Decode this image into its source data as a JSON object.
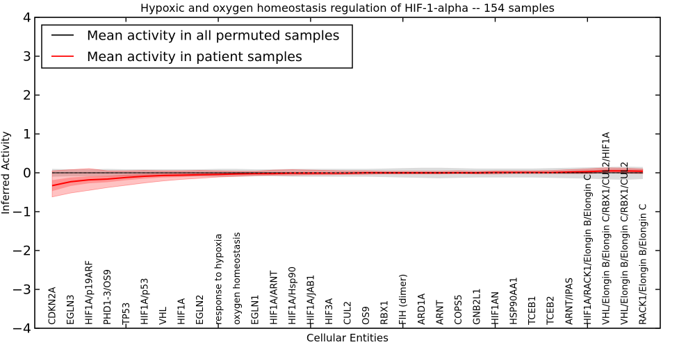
{
  "window": {
    "title": "Hypoxic and oxygen homeostasis regulation of HIF-1-alpha -- 154 samples"
  },
  "chart_data": {
    "type": "line",
    "title": "Hypoxic and oxygen homeostasis regulation of HIF-1-alpha -- 154 samples",
    "xlabel": "Cellular Entities",
    "ylabel": "Inferred Activity",
    "ylim": [
      -4,
      4
    ],
    "y_ticks": [
      -4,
      -3,
      -2,
      -1,
      0,
      1,
      2,
      3,
      4
    ],
    "x_major_tick_indices": [
      4,
      9,
      14,
      19,
      24,
      29
    ],
    "grid": "off",
    "legend_position": "upper left",
    "sample_count_in_title": 154,
    "categories": [
      "CDKN2A",
      "EGLN3",
      "HIF1A/p19ARF",
      "PHD1-3/OS9",
      "TP53",
      "HIF1A/p53",
      "VHL",
      "HIF1A",
      "EGLN2",
      "response to hypoxia",
      "oxygen homeostasis",
      "EGLN1",
      "HIF1A/ARNT",
      "HIF1A/Hsp90",
      "HIF1A/JAB1",
      "HIF3A",
      "CUL2",
      "OS9",
      "RBX1",
      "FIH (dimer)",
      "ARD1A",
      "ARNT",
      "COPS5",
      "GNB2L1",
      "HIF1AN",
      "HSP90AA1",
      "TCEB1",
      "TCEB2",
      "ARNT/IPAS",
      "HIF1A/RACK1/Elongin B/Elongin C",
      "VHL/Elongin B/Elongin C/RBX1/CUL2/HIF1A",
      "VHL/Elongin B/Elongin C/RBX1/CUL2",
      "RACK1/Elongin B/Elongin C"
    ],
    "series": [
      {
        "name": "Mean activity in all permuted samples",
        "color": "#000000",
        "line_style": "solid-with-dashed-overlay",
        "values": [
          0,
          0,
          0,
          0,
          0,
          0,
          0,
          0,
          0,
          0,
          0,
          0,
          0,
          0,
          0,
          0,
          0,
          0,
          0,
          0,
          0,
          0,
          0,
          0,
          0,
          0,
          0,
          0,
          0,
          0,
          0,
          0,
          0
        ],
        "band_upper": [
          0.1,
          0.09,
          0.09,
          0.1,
          0.09,
          0.09,
          0.09,
          0.09,
          0.09,
          0.1,
          0.1,
          0.09,
          0.09,
          0.1,
          0.1,
          0.1,
          0.1,
          0.1,
          0.11,
          0.12,
          0.13,
          0.13,
          0.12,
          0.11,
          0.11,
          0.11,
          0.11,
          0.12,
          0.13,
          0.14,
          0.15,
          0.16,
          0.15
        ],
        "band_lower": [
          -0.1,
          -0.09,
          -0.09,
          -0.1,
          -0.09,
          -0.09,
          -0.09,
          -0.09,
          -0.09,
          -0.1,
          -0.1,
          -0.09,
          -0.09,
          -0.1,
          -0.1,
          -0.1,
          -0.1,
          -0.1,
          -0.11,
          -0.12,
          -0.13,
          -0.14,
          -0.13,
          -0.12,
          -0.12,
          -0.12,
          -0.12,
          -0.13,
          -0.14,
          -0.15,
          -0.17,
          -0.18,
          -0.16
        ],
        "band_color": "rgba(0,0,0,0.14)"
      },
      {
        "name": "Mean activity in patient samples",
        "color": "#ff0000",
        "line_style": "solid",
        "values": [
          -0.33,
          -0.23,
          -0.18,
          -0.16,
          -0.12,
          -0.09,
          -0.07,
          -0.06,
          -0.05,
          -0.04,
          -0.03,
          -0.02,
          -0.02,
          -0.01,
          -0.01,
          -0.01,
          -0.01,
          0.0,
          0.0,
          0.0,
          0.0,
          0.0,
          0.0,
          0.0,
          0.01,
          0.01,
          0.01,
          0.01,
          0.02,
          0.03,
          0.05,
          0.05,
          0.04
        ],
        "band_upper": [
          0.05,
          0.08,
          0.11,
          0.05,
          0.05,
          0.06,
          0.05,
          0.05,
          0.06,
          0.05,
          0.04,
          0.04,
          0.07,
          0.08,
          0.07,
          0.06,
          0.05,
          0.05,
          0.04,
          0.04,
          0.04,
          0.04,
          0.05,
          0.04,
          0.05,
          0.05,
          0.05,
          0.06,
          0.08,
          0.1,
          0.13,
          0.12,
          0.1
        ],
        "band_lower": [
          -0.62,
          -0.52,
          -0.45,
          -0.38,
          -0.32,
          -0.26,
          -0.21,
          -0.17,
          -0.14,
          -0.11,
          -0.09,
          -0.07,
          -0.06,
          -0.06,
          -0.05,
          -0.05,
          -0.04,
          -0.04,
          -0.03,
          -0.03,
          -0.03,
          -0.03,
          -0.02,
          -0.03,
          -0.03,
          -0.02,
          -0.02,
          -0.02,
          -0.02,
          -0.02,
          0.0,
          -0.01,
          -0.02
        ],
        "inner_band_upper": [
          -0.19,
          -0.12,
          -0.09,
          -0.08,
          -0.05,
          -0.03,
          -0.02,
          -0.01,
          -0.01,
          0.0,
          0.0,
          0.01,
          0.01,
          0.02,
          0.02,
          0.01,
          0.01,
          0.02,
          0.02,
          0.02,
          0.02,
          0.02,
          0.02,
          0.02,
          0.03,
          0.03,
          0.03,
          0.03,
          0.05,
          0.07,
          0.09,
          0.09,
          0.08
        ],
        "inner_band_lower": [
          -0.47,
          -0.34,
          -0.27,
          -0.24,
          -0.19,
          -0.15,
          -0.12,
          -0.11,
          -0.09,
          -0.08,
          -0.06,
          -0.05,
          -0.05,
          -0.04,
          -0.04,
          -0.03,
          -0.03,
          -0.02,
          -0.02,
          -0.02,
          -0.02,
          -0.02,
          -0.02,
          -0.02,
          -0.01,
          -0.01,
          -0.01,
          -0.01,
          -0.01,
          -0.01,
          0.01,
          0.01,
          0.0
        ],
        "band_color": "rgba(255,0,0,0.24)"
      }
    ]
  },
  "legend": {
    "items": [
      {
        "label": "Mean activity in all permuted samples",
        "color": "#000000"
      },
      {
        "label": "Mean activity in patient samples",
        "color": "#ff0000"
      }
    ]
  }
}
